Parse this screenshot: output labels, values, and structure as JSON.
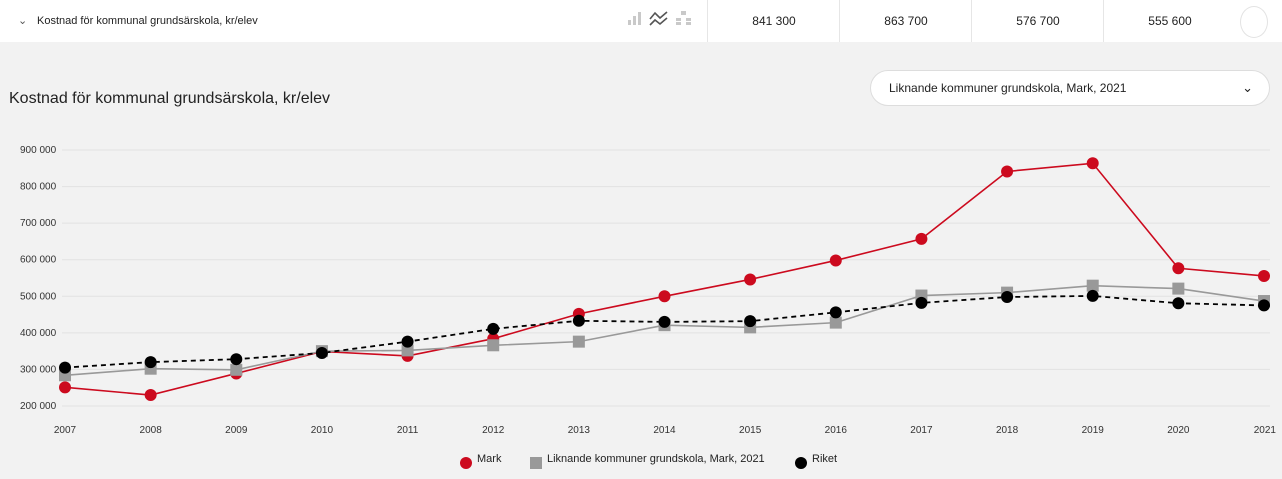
{
  "row": {
    "toggle_icon": "chevron-down-icon",
    "toggle_glyph": "⌄",
    "title": "Kostnad för kommunal grundsärskola, kr/elev",
    "view_icons": [
      "bar-chart-icon",
      "line-chart-icon",
      "tree-chart-icon"
    ],
    "values": [
      "841 300",
      "863 700",
      "576 700",
      "555 600"
    ]
  },
  "panel": {
    "title": "Kostnad för kommunal grundsärskola, kr/elev",
    "dropdown": {
      "selected": "Liknande kommuner grundskola, Mark, 2021",
      "caret": "⌄"
    }
  },
  "colors": {
    "mark": "#cc0a1e",
    "liknande": "#999999",
    "riket": "#000000"
  },
  "chart_data": {
    "type": "line",
    "x": [
      "2007",
      "2008",
      "2009",
      "2010",
      "2011",
      "2012",
      "2013",
      "2014",
      "2015",
      "2016",
      "2017",
      "2018",
      "2019",
      "2020",
      "2021"
    ],
    "y_ticks": [
      "200 000",
      "300 000",
      "400 000",
      "500 000",
      "600 000",
      "700 000",
      "800 000",
      "900 000"
    ],
    "ylim": [
      200000,
      900000
    ],
    "grid": true,
    "legend_position": "bottom",
    "series": [
      {
        "name": "Mark",
        "marker": "circle",
        "line": "solid",
        "values": [
          251000,
          230000,
          289000,
          349000,
          337000,
          384000,
          452000,
          500000,
          546000,
          598000,
          657000,
          841300,
          863700,
          576700,
          555600
        ]
      },
      {
        "name": "Liknande kommuner grundskola, Mark, 2021",
        "marker": "square",
        "line": "solid",
        "values": [
          284000,
          302000,
          299000,
          350000,
          352000,
          366000,
          376000,
          421000,
          415000,
          428000,
          502000,
          510000,
          529000,
          521000,
          487000
        ]
      },
      {
        "name": "Riket",
        "marker": "circle",
        "line": "dashed",
        "values": [
          305000,
          320000,
          328000,
          345000,
          376000,
          411000,
          433000,
          430000,
          432000,
          456000,
          482000,
          498000,
          501000,
          481000,
          475000
        ]
      }
    ]
  }
}
